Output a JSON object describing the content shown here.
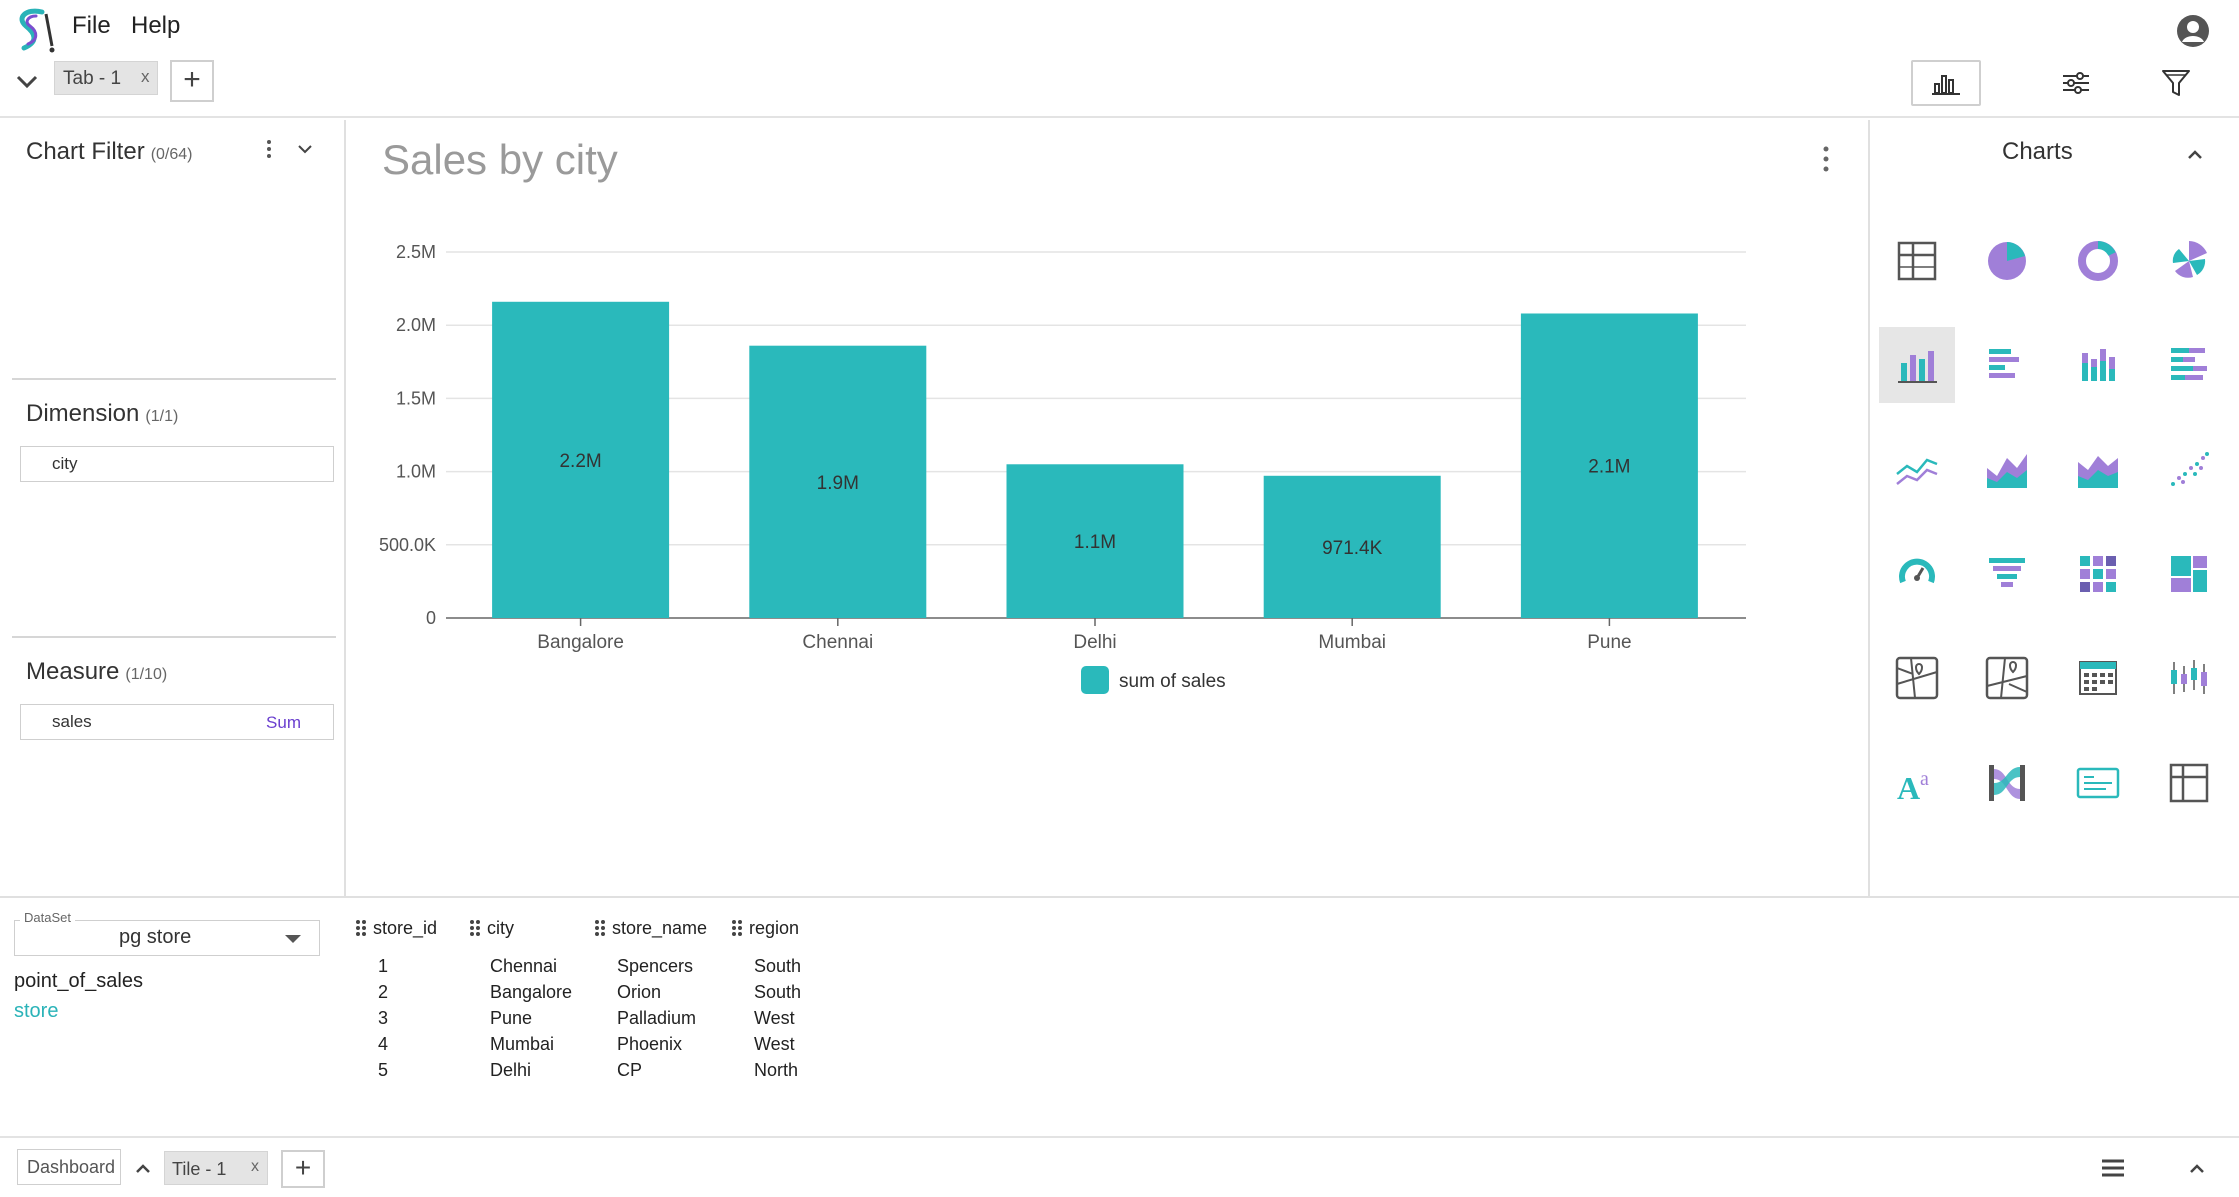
{
  "menu": {
    "file": "File",
    "help": "Help"
  },
  "tabs": [
    {
      "label": "Tab - 1",
      "close": "x"
    }
  ],
  "add_tab_label": "+",
  "left_panel": {
    "chart_filter": {
      "title": "Chart Filter",
      "count": "(0/64)"
    },
    "dimension": {
      "title": "Dimension",
      "count": "(1/1)",
      "fields": [
        {
          "name": "city"
        }
      ]
    },
    "measure": {
      "title": "Measure",
      "count": "(1/10)",
      "fields": [
        {
          "name": "sales",
          "aggregation": "Sum"
        }
      ]
    }
  },
  "chart": {
    "title": "Sales by city",
    "legend": "sum of sales",
    "bar_color": "#2ab9bb"
  },
  "chart_data": {
    "type": "bar",
    "title": "Sales by city",
    "categories": [
      "Bangalore",
      "Chennai",
      "Delhi",
      "Mumbai",
      "Pune"
    ],
    "series": [
      {
        "name": "sum of sales",
        "values": [
          2160000,
          1860000,
          1050000,
          971400,
          2080000
        ]
      }
    ],
    "data_labels": [
      "2.2M",
      "1.9M",
      "1.1M",
      "971.4K",
      "2.1M"
    ],
    "y_ticks": [
      0,
      500000,
      1000000,
      1500000,
      2000000,
      2500000
    ],
    "y_tick_labels": [
      "0",
      "500.0K",
      "1.0M",
      "1.5M",
      "2.0M",
      "2.5M"
    ],
    "ylim": [
      0,
      2500000
    ],
    "grid": true,
    "legend_position": "bottom-center",
    "xlabel": "",
    "ylabel": ""
  },
  "charts_panel": {
    "title": "Charts",
    "types": [
      "table",
      "pie",
      "donut",
      "rose",
      "bar",
      "horizontal-bar",
      "stacked-bar",
      "horizontal-stacked-bar",
      "line",
      "area",
      "stacked-area",
      "scatter",
      "gauge",
      "funnel",
      "heatmap",
      "treemap",
      "geo-map",
      "geo-map-alt",
      "calendar",
      "boxplot",
      "text-editor",
      "sankey",
      "rich-text",
      "crosstab"
    ],
    "selected": "bar"
  },
  "dataset": {
    "legend": "DataSet",
    "value": "pg store",
    "tables": [
      {
        "name": "point_of_sales",
        "active": false
      },
      {
        "name": "store",
        "active": true
      }
    ]
  },
  "data_table": {
    "columns": [
      "store_id",
      "city",
      "store_name",
      "region"
    ],
    "rows": [
      [
        "1",
        "Chennai",
        "Spencers",
        "South"
      ],
      [
        "2",
        "Bangalore",
        "Orion",
        "South"
      ],
      [
        "3",
        "Pune",
        "Palladium",
        "West"
      ],
      [
        "4",
        "Mumbai",
        "Phoenix",
        "West"
      ],
      [
        "5",
        "Delhi",
        "CP",
        "North"
      ]
    ]
  },
  "footer": {
    "dashboard": "Dashboard",
    "tile": "Tile - 1",
    "tile_close": "x",
    "add_tile": "+"
  }
}
